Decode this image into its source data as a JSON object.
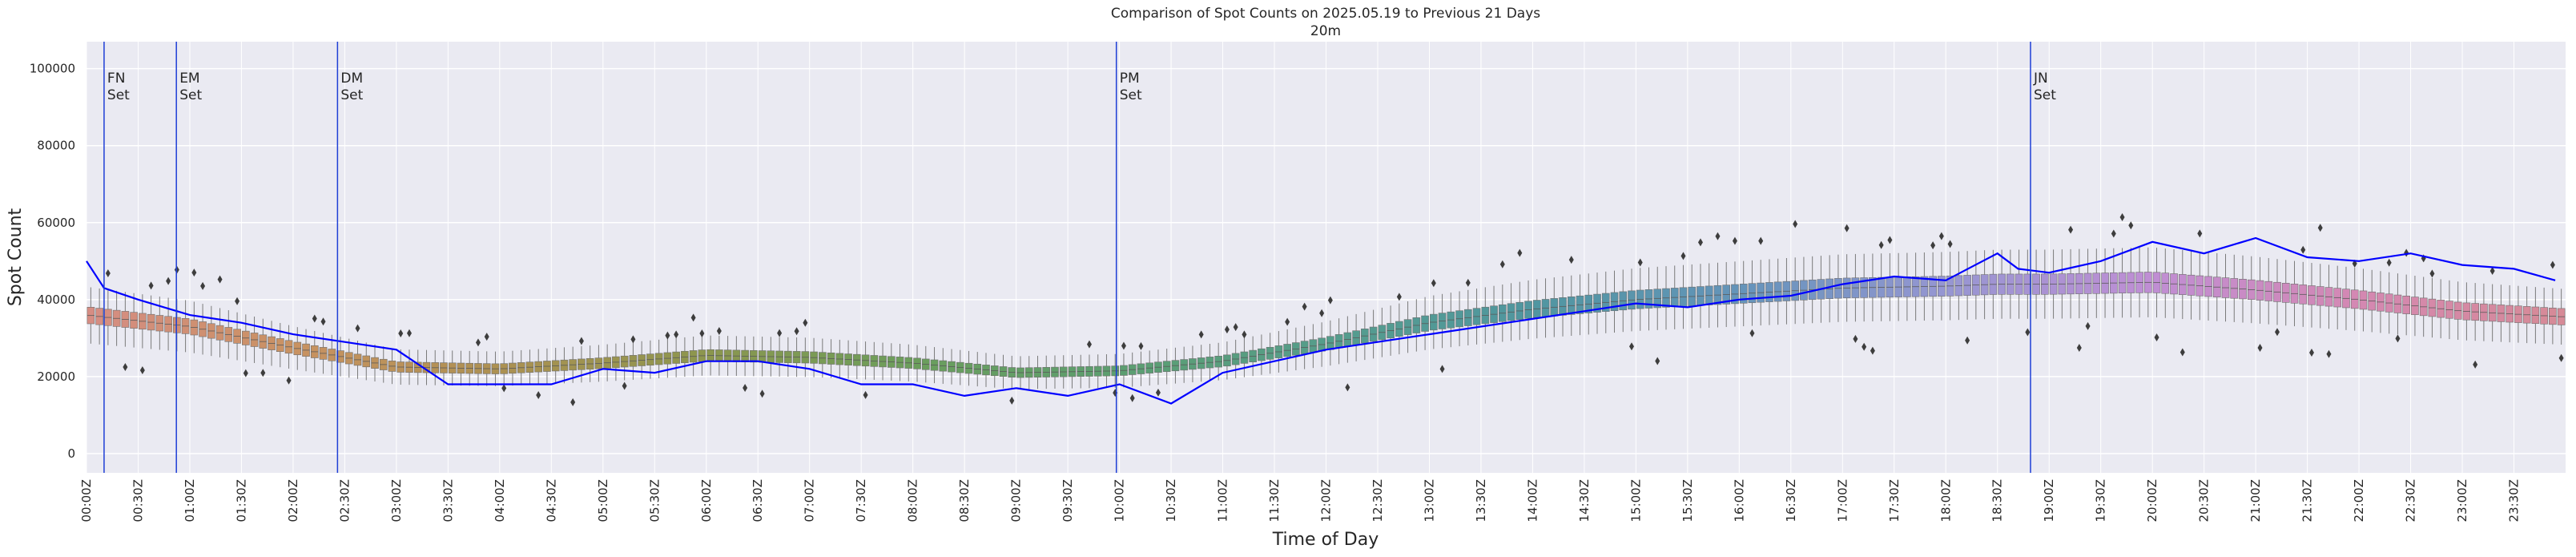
{
  "chart_data": {
    "type": "box",
    "title": "Comparison of Spot Counts on 2025.05.19 to Previous 21 Days",
    "subtitle": "20m",
    "xlabel": "Time of Day",
    "ylabel": "Spot Count",
    "ylim": [
      -5000,
      107000
    ],
    "yticks": [
      0,
      20000,
      40000,
      60000,
      80000,
      100000
    ],
    "ytick_labels": [
      "0",
      "20000",
      "40000",
      "60000",
      "80000",
      "100000"
    ],
    "x_range_hours": [
      0,
      24
    ],
    "xtick_labels": [
      "00:00Z",
      "00:30Z",
      "01:00Z",
      "01:30Z",
      "02:00Z",
      "02:30Z",
      "03:00Z",
      "03:30Z",
      "04:00Z",
      "04:30Z",
      "05:00Z",
      "05:30Z",
      "06:00Z",
      "06:30Z",
      "07:00Z",
      "07:30Z",
      "08:00Z",
      "08:30Z",
      "09:00Z",
      "09:30Z",
      "10:00Z",
      "10:30Z",
      "11:00Z",
      "11:30Z",
      "12:00Z",
      "12:30Z",
      "13:00Z",
      "13:30Z",
      "14:00Z",
      "14:30Z",
      "15:00Z",
      "15:30Z",
      "16:00Z",
      "16:30Z",
      "17:00Z",
      "17:30Z",
      "18:00Z",
      "18:30Z",
      "19:00Z",
      "19:30Z",
      "20:00Z",
      "20:30Z",
      "21:00Z",
      "21:30Z",
      "22:00Z",
      "22:30Z",
      "23:00Z",
      "23:30Z"
    ],
    "grid": true,
    "background": "#eaeaf2",
    "line_color": "#0000ff",
    "box_median_profile": {
      "hours": [
        0,
        1,
        2,
        3,
        4,
        5,
        6,
        7,
        8,
        9,
        10,
        11,
        12,
        13,
        14,
        15,
        16,
        17,
        18,
        18.5,
        19,
        20,
        21,
        22,
        23,
        24
      ],
      "values": [
        36000,
        33000,
        27500,
        22500,
        22000,
        23500,
        25500,
        25000,
        23500,
        21000,
        21500,
        24000,
        28500,
        34000,
        37500,
        40000,
        41500,
        43000,
        43500,
        44000,
        44000,
        44500,
        42500,
        40000,
        37000,
        35500
      ]
    },
    "today_line": {
      "hours": [
        0,
        0.17,
        0.5,
        1,
        1.5,
        2,
        2.5,
        3,
        3.5,
        4,
        4.5,
        5,
        5.5,
        6,
        6.5,
        7,
        7.5,
        8,
        8.5,
        9,
        9.5,
        10,
        10.5,
        11,
        11.5,
        12,
        12.5,
        13,
        13.5,
        14,
        14.5,
        15,
        15.5,
        16,
        16.5,
        17,
        17.5,
        18,
        18.5,
        18.7,
        19,
        19.5,
        20,
        20.5,
        21,
        21.5,
        22,
        22.5,
        23,
        23.5,
        23.9
      ],
      "values": [
        50000,
        43000,
        40000,
        36000,
        34000,
        31000,
        29000,
        27000,
        18000,
        18000,
        18000,
        22000,
        21000,
        24000,
        24000,
        22000,
        18000,
        18000,
        15000,
        17000,
        15000,
        18000,
        13000,
        21000,
        24000,
        27000,
        29000,
        31000,
        33000,
        35000,
        37000,
        39000,
        38000,
        40000,
        41000,
        44000,
        46000,
        45000,
        52000,
        48000,
        47000,
        50000,
        55000,
        52000,
        56000,
        51000,
        50000,
        52000,
        49000,
        48000,
        45000
      ]
    },
    "annotations": [
      {
        "hour": 0.17,
        "line1": "FN",
        "line2": "Set"
      },
      {
        "hour": 0.87,
        "line1": "EM",
        "line2": "Set"
      },
      {
        "hour": 2.43,
        "line1": "DM",
        "line2": "Set"
      },
      {
        "hour": 9.97,
        "line1": "PM",
        "line2": "Set"
      },
      {
        "hour": 18.82,
        "line1": "JN",
        "line2": "Set"
      }
    ]
  }
}
